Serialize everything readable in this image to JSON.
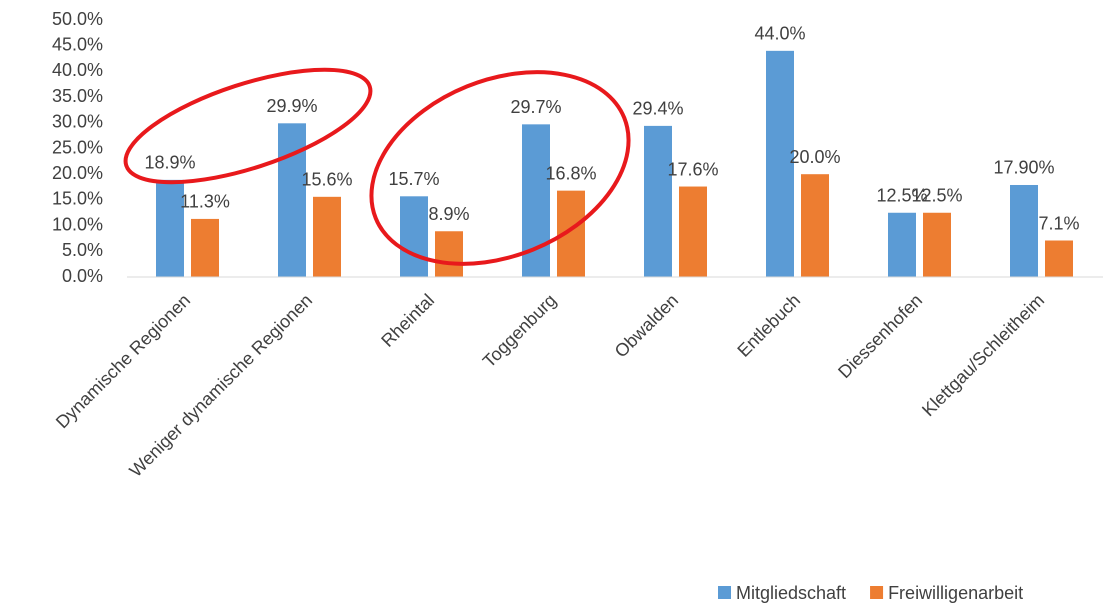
{
  "chart_data": {
    "type": "bar",
    "categories": [
      "Dynamische Regionen",
      "Weniger dynamische Regionen",
      "Rheintal",
      "Toggenburg",
      "Obwalden",
      "Entlebuch",
      "Diessenhofen",
      "Klettgau/Schleitheim"
    ],
    "series": [
      {
        "name": "Mitgliedschaft",
        "color": "#5b9bd5",
        "values": [
          18.9,
          29.9,
          15.7,
          29.7,
          29.4,
          44.0,
          12.5,
          17.9
        ],
        "value_labels": [
          "18.9%",
          "29.9%",
          "15.7%",
          "29.7%",
          "29.4%",
          "44.0%",
          "12.5%",
          "17.90%"
        ]
      },
      {
        "name": "Freiwilligenarbeit",
        "color": "#ed7d31",
        "values": [
          11.3,
          15.6,
          8.9,
          16.8,
          17.6,
          20.0,
          12.5,
          7.1
        ],
        "value_labels": [
          "11.3%",
          "15.6%",
          "8.9%",
          "16.8%",
          "17.6%",
          "20.0%",
          "12.5%",
          "7.1%"
        ]
      }
    ],
    "ylim": [
      0,
      50
    ],
    "yticks": [
      {
        "value": 0,
        "label": "0.0%"
      },
      {
        "value": 5,
        "label": "5.0%"
      },
      {
        "value": 10,
        "label": "10.0%"
      },
      {
        "value": 15,
        "label": "15.0%"
      },
      {
        "value": 20,
        "label": "20.0%"
      },
      {
        "value": 25,
        "label": "25.0%"
      },
      {
        "value": 30,
        "label": "30.0%"
      },
      {
        "value": 35,
        "label": "35.0%"
      },
      {
        "value": 40,
        "label": "40.0%"
      },
      {
        "value": 45,
        "label": "45.0%"
      },
      {
        "value": 50,
        "label": "50.0%"
      }
    ],
    "grid": false,
    "legend": "bottom"
  }
}
